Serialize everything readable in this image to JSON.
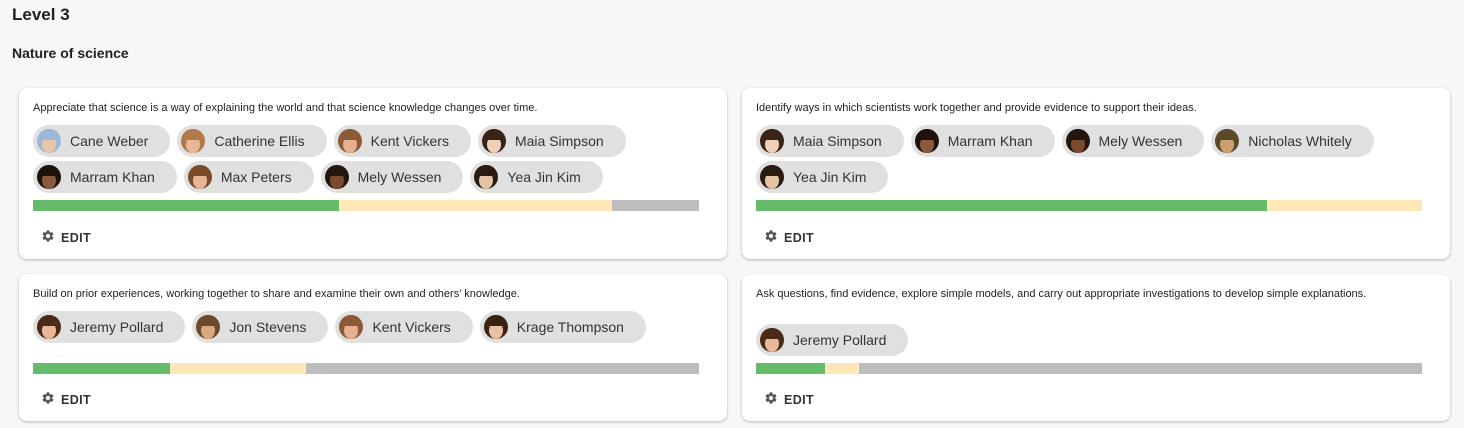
{
  "level_title": "Level 3",
  "section_title": "Nature of science",
  "colors": {
    "complete": "#66bb6a",
    "in_progress": "#ffe8b6",
    "not_started": "#bdbdbd"
  },
  "cards": [
    {
      "description": "Appreciate that science is a way of explaining the world and that science knowledge changes over time.",
      "students": [
        {
          "name": "Cane Weber",
          "skin": "#e9c4a8",
          "hair": "#9bb8d8"
        },
        {
          "name": "Catherine Ellis",
          "skin": "#e7b796",
          "hair": "#b07a4a"
        },
        {
          "name": "Kent Vickers",
          "skin": "#e6b090",
          "hair": "#8c5a36"
        },
        {
          "name": "Maia Simpson",
          "skin": "#f0d0b8",
          "hair": "#3a2418"
        },
        {
          "name": "Marram Khan",
          "skin": "#8a5a3a",
          "hair": "#1e120c"
        },
        {
          "name": "Max Peters",
          "skin": "#e7b596",
          "hair": "#7a4a2a"
        },
        {
          "name": "Mely Wessen",
          "skin": "#7a4a2e",
          "hair": "#24160e"
        },
        {
          "name": "Yea Jin Kim",
          "skin": "#e4c2a2",
          "hair": "#2a1a10"
        }
      ],
      "progress": {
        "complete": 0.46,
        "in_progress": 0.41
      },
      "edit_label": "EDIT"
    },
    {
      "description": "Identify ways in which scientists work together and provide evidence to support their ideas.",
      "students": [
        {
          "name": "Maia Simpson",
          "skin": "#f0d0b8",
          "hair": "#3a2418"
        },
        {
          "name": "Marram Khan",
          "skin": "#8a5a3a",
          "hair": "#1e120c"
        },
        {
          "name": "Mely Wessen",
          "skin": "#7a4a2e",
          "hair": "#24160e"
        },
        {
          "name": "Nicholas Whitely",
          "skin": "#c9a070",
          "hair": "#5a4a2a"
        },
        {
          "name": "Yea Jin Kim",
          "skin": "#e4c2a2",
          "hair": "#2a1a10"
        }
      ],
      "progress": {
        "complete": 0.767,
        "in_progress": 0.233
      },
      "edit_label": "EDIT"
    },
    {
      "description": "Build on prior experiences, working together to share and examine their own and others’ knowledge.",
      "students": [
        {
          "name": "Jeremy Pollard",
          "skin": "#e8b898",
          "hair": "#4a2a18"
        },
        {
          "name": "Jon Stevens",
          "skin": "#d8a880",
          "hair": "#6a4a2a"
        },
        {
          "name": "Kent Vickers",
          "skin": "#e6b090",
          "hair": "#8c5a36"
        },
        {
          "name": "Krage Thompson",
          "skin": "#e8c0a0",
          "hair": "#3a2212"
        }
      ],
      "progress": {
        "complete": 0.205,
        "in_progress": 0.205
      },
      "edit_label": "EDIT"
    },
    {
      "description": "Ask questions, find evidence, explore simple models, and carry out appropriate investigations to develop simple explanations.",
      "students": [
        {
          "name": "Jeremy Pollard",
          "skin": "#e8b898",
          "hair": "#4a2a18"
        }
      ],
      "progress": {
        "complete": 0.103,
        "in_progress": 0.051
      },
      "edit_label": "EDIT"
    }
  ]
}
